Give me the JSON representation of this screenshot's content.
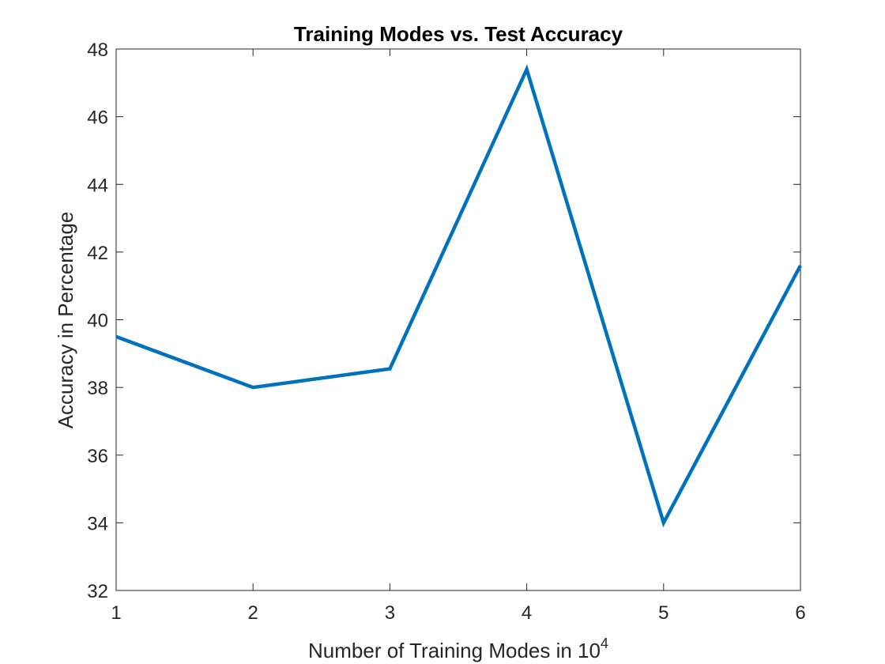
{
  "chart_data": {
    "type": "line",
    "title": "Training Modes vs. Test Accuracy",
    "xlabel": "Number of Training Modes in 10",
    "xlabel_superscript": "4",
    "ylabel": "Accuracy in Percentage",
    "xlim": [
      1,
      6
    ],
    "ylim": [
      32,
      48
    ],
    "xticks": [
      1,
      2,
      3,
      4,
      5,
      6
    ],
    "yticks": [
      32,
      34,
      36,
      38,
      40,
      42,
      44,
      46,
      48
    ],
    "grid": false,
    "series": [
      {
        "x": [
          1,
          2,
          3,
          4,
          5,
          6
        ],
        "values": [
          39.5,
          38.0,
          38.55,
          47.4,
          34.0,
          41.6
        ],
        "color": "#0072BD"
      }
    ]
  }
}
